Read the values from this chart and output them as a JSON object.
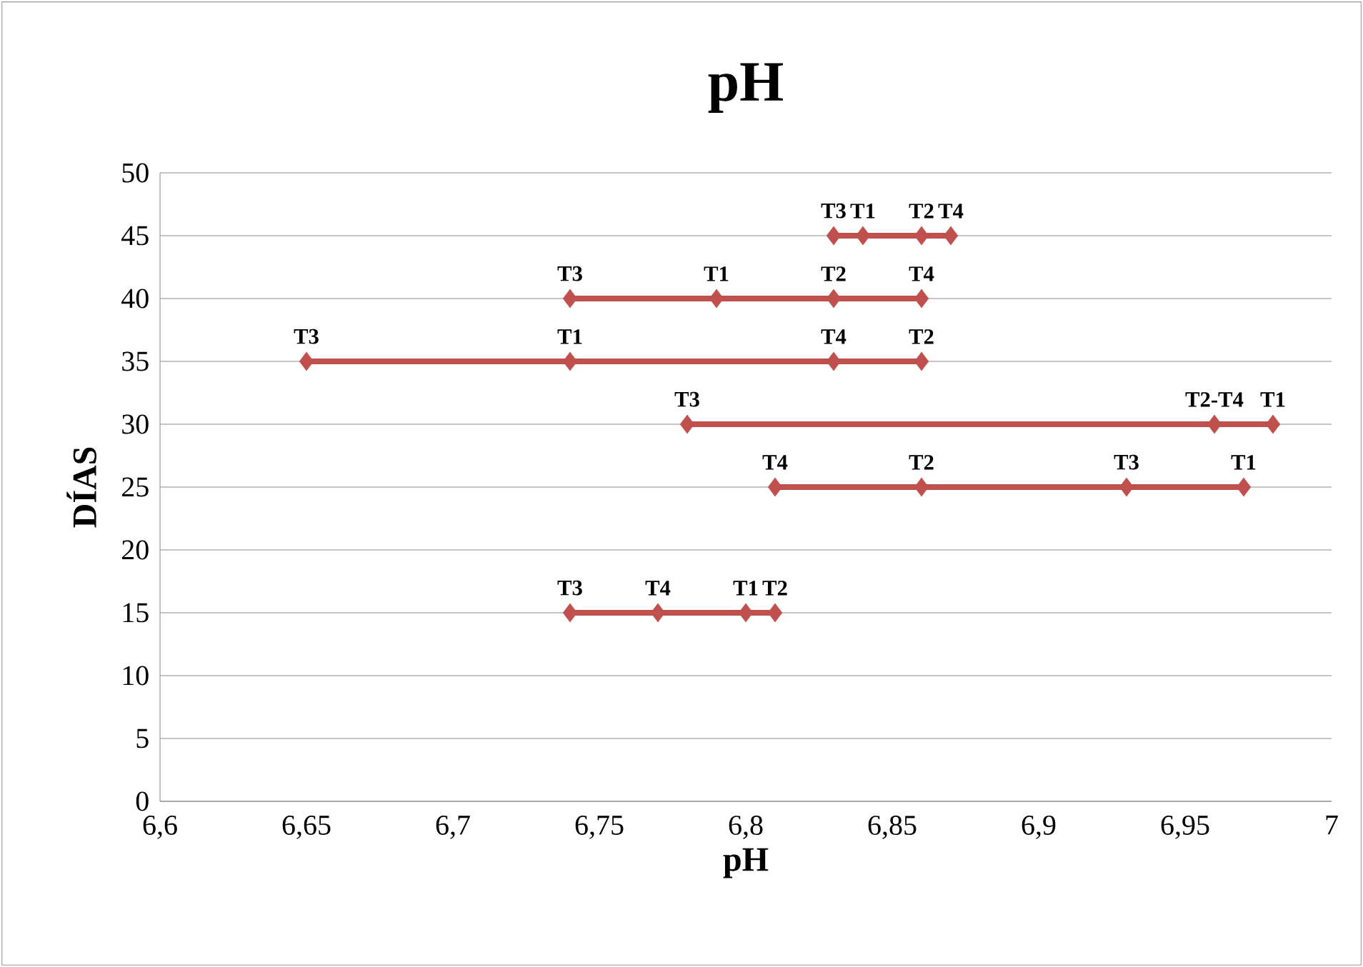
{
  "chart_data": {
    "type": "line",
    "title": "pH",
    "xlabel": "pH",
    "ylabel": "DÍAS",
    "series": [
      {
        "color": "#c0504d",
        "x": [
          6.74,
          6.77,
          6.8,
          6.81
        ],
        "values": [
          15,
          15,
          15,
          15
        ],
        "value_labels": [
          "T3",
          "T4",
          "T1",
          "T2"
        ]
      },
      {
        "color": "#c0504d",
        "x": [
          6.81,
          6.86,
          6.93,
          6.97
        ],
        "values": [
          25,
          25,
          25,
          25
        ],
        "value_labels": [
          "T4",
          "T2",
          "T3",
          "T1"
        ]
      },
      {
        "color": "#c0504d",
        "x": [
          6.78,
          6.96,
          6.98
        ],
        "values": [
          30,
          30,
          30
        ],
        "value_labels": [
          "T3",
          "T2-T4",
          "T1"
        ]
      },
      {
        "color": "#c0504d",
        "x": [
          6.65,
          6.74,
          6.83,
          6.86
        ],
        "values": [
          35,
          35,
          35,
          35
        ],
        "value_labels": [
          "T3",
          "T1",
          "T4",
          "T2"
        ]
      },
      {
        "color": "#c0504d",
        "x": [
          6.74,
          6.79,
          6.83,
          6.86
        ],
        "values": [
          40,
          40,
          40,
          40
        ],
        "value_labels": [
          "T3",
          "T1",
          "T2",
          "T4"
        ]
      },
      {
        "color": "#c0504d",
        "x": [
          6.83,
          6.84,
          6.86,
          6.87
        ],
        "values": [
          45,
          45,
          45,
          45
        ],
        "value_labels": [
          "T3",
          "T1",
          "T2",
          "T4"
        ]
      }
    ],
    "xlim": [
      6.6,
      7
    ],
    "xticks": [
      {
        "value": 6.6,
        "label": "6,6"
      },
      {
        "value": 6.65,
        "label": "6,65"
      },
      {
        "value": 6.7,
        "label": "6,7"
      },
      {
        "value": 6.75,
        "label": "6,75"
      },
      {
        "value": 6.8,
        "label": "6,8"
      },
      {
        "value": 6.85,
        "label": "6,85"
      },
      {
        "value": 6.9,
        "label": "6,9"
      },
      {
        "value": 6.95,
        "label": "6,95"
      },
      {
        "value": 7,
        "label": "7"
      }
    ],
    "ylim": [
      0,
      50
    ],
    "yticks": [
      0,
      5,
      10,
      15,
      20,
      25,
      30,
      35,
      40,
      45,
      50
    ],
    "grid": "y",
    "legend": false,
    "marker": "diamond",
    "line_style": "solid"
  }
}
